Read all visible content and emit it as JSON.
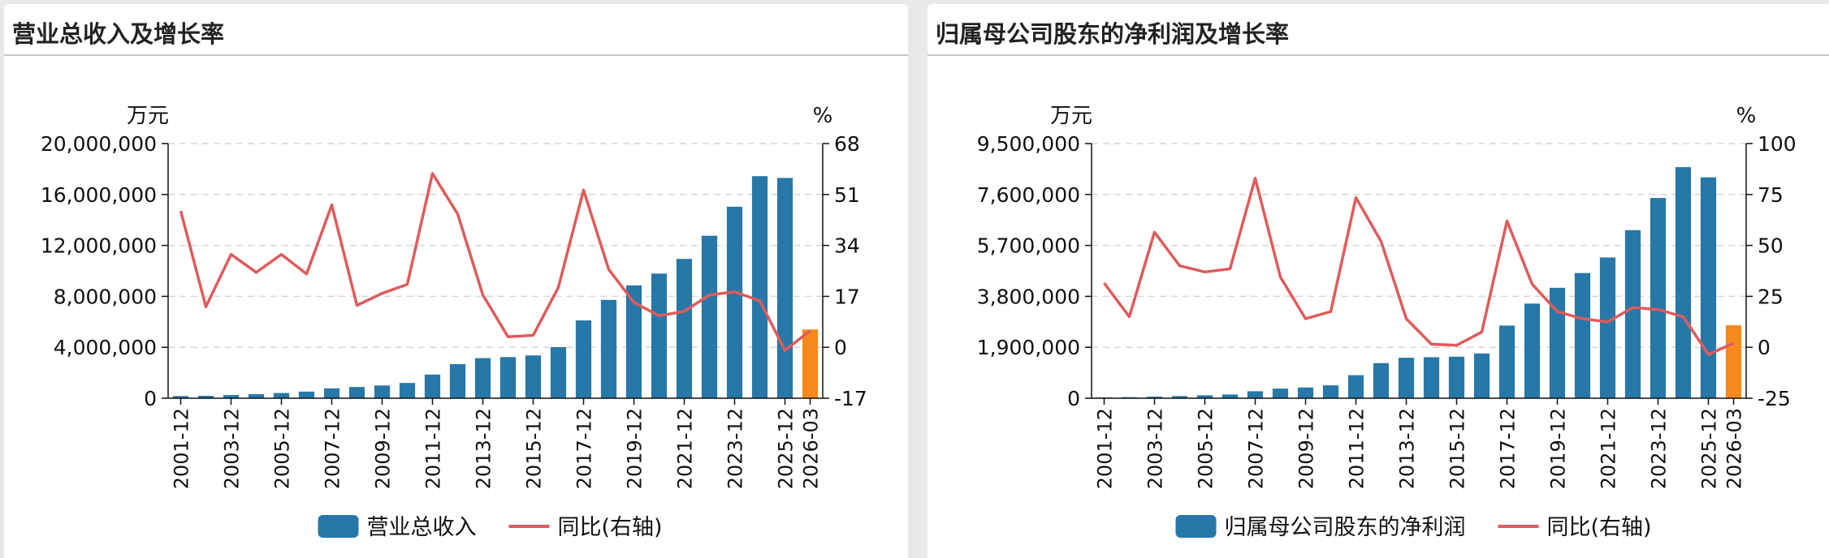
{
  "panels": [
    {
      "title": "营业总收入及增长率",
      "chart_data": {
        "type": "bar",
        "left_unit": "万元",
        "right_unit": "%",
        "categories": [
          "2001-12",
          "2002-12",
          "2003-12",
          "2004-12",
          "2005-12",
          "2006-12",
          "2007-12",
          "2008-12",
          "2009-12",
          "2010-12",
          "2011-12",
          "2012-12",
          "2013-12",
          "2014-12",
          "2015-12",
          "2016-12",
          "2017-12",
          "2018-12",
          "2019-12",
          "2020-12",
          "2021-12",
          "2022-12",
          "2023-12",
          "2024-12",
          "2025-12",
          "2026-03"
        ],
        "tick_labels": [
          "2001-12",
          "2003-12",
          "2005-12",
          "2007-12",
          "2009-12",
          "2011-12",
          "2013-12",
          "2015-12",
          "2017-12",
          "2019-12",
          "2021-12",
          "2023-12",
          "2025-12",
          "2026-03"
        ],
        "ylim": [
          0,
          20000000
        ],
        "yticks": [
          "0",
          "4,000,000",
          "8,000,000",
          "12,000,000",
          "16,000,000",
          "20,000,000"
        ],
        "y2lim": [
          -17,
          68
        ],
        "y2ticks": [
          "-17",
          "0",
          "17",
          "34",
          "51",
          "68"
        ],
        "series": [
          {
            "name": "营业总收入",
            "kind": "bar",
            "color": "#2778a8",
            "highlight_color": "#f7891c",
            "highlight_last": true,
            "values": [
              170000,
              190000,
              250000,
              320000,
              410000,
              520000,
              770000,
              880000,
              1000000,
              1200000,
              1860000,
              2680000,
              3150000,
              3230000,
              3360000,
              4010000,
              6110000,
              7720000,
              8860000,
              9790000,
              10940000,
              12760000,
              15040000,
              17440000,
              17300000,
              5400000
            ]
          },
          {
            "name": "同比(右轴)",
            "kind": "line",
            "axis": "right",
            "color": "#df5b5b",
            "values": [
              45.5,
              13.5,
              31,
              25,
              31,
              24.5,
              47.5,
              14,
              18,
              21,
              58,
              44.5,
              17.5,
              3.5,
              4,
              20,
              52.5,
              26,
              15,
              10.5,
              12,
              17.5,
              18.5,
              15.5,
              -1,
              5.5
            ]
          }
        ]
      }
    },
    {
      "title": "归属母公司股东的净利润及增长率",
      "chart_data": {
        "type": "bar",
        "left_unit": "万元",
        "right_unit": "%",
        "categories": [
          "2001-12",
          "2002-12",
          "2003-12",
          "2004-12",
          "2005-12",
          "2006-12",
          "2007-12",
          "2008-12",
          "2009-12",
          "2010-12",
          "2011-12",
          "2012-12",
          "2013-12",
          "2014-12",
          "2015-12",
          "2016-12",
          "2017-12",
          "2018-12",
          "2019-12",
          "2020-12",
          "2021-12",
          "2022-12",
          "2023-12",
          "2024-12",
          "2025-12",
          "2026-03"
        ],
        "tick_labels": [
          "2001-12",
          "2003-12",
          "2005-12",
          "2007-12",
          "2009-12",
          "2011-12",
          "2013-12",
          "2015-12",
          "2017-12",
          "2019-12",
          "2021-12",
          "2023-12",
          "2025-12",
          "2026-03"
        ],
        "ylim": [
          0,
          9500000
        ],
        "yticks": [
          "0",
          "1,900,000",
          "3,800,000",
          "5,700,000",
          "7,600,000",
          "9,500,000"
        ],
        "y2lim": [
          -25,
          100
        ],
        "y2ticks": [
          "-25",
          "0",
          "25",
          "50",
          "75",
          "100"
        ],
        "series": [
          {
            "name": "归属母公司股东的净利润",
            "kind": "bar",
            "color": "#2778a8",
            "highlight_color": "#f7891c",
            "highlight_last": true,
            "values": [
              30000,
              40000,
              60000,
              80000,
              110000,
              140000,
              260000,
              360000,
              400000,
              480000,
              860000,
              1310000,
              1510000,
              1530000,
              1550000,
              1670000,
              2710000,
              3530000,
              4120000,
              4670000,
              5250000,
              6270000,
              7470000,
              8620000,
              8240000,
              2720000
            ]
          },
          {
            "name": "同比(右轴)",
            "kind": "line",
            "axis": "right",
            "color": "#df5b5b",
            "values": [
              31.5,
              15,
              56.5,
              40,
              37,
              38.5,
              83,
              34.5,
              14,
              17.5,
              73.5,
              52,
              14,
              1.5,
              1,
              7.5,
              62,
              31,
              17.5,
              14,
              12.5,
              19.5,
              18.5,
              15,
              -3.5,
              2
            ]
          }
        ]
      }
    }
  ]
}
